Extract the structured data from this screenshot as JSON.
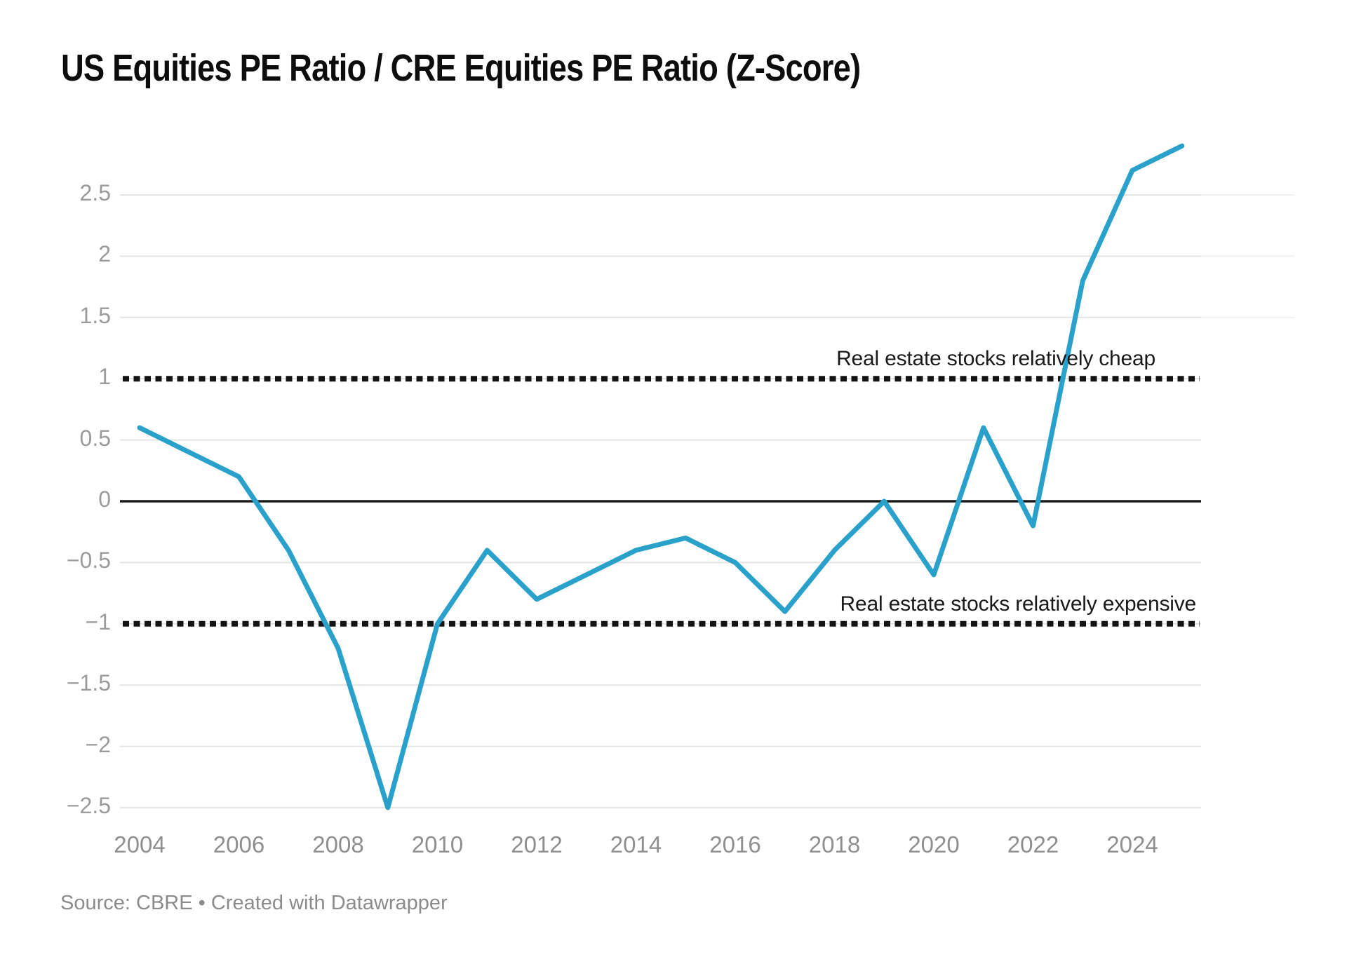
{
  "header": {
    "title": "US  Equities PE Ratio / CRE Equities PE Ratio (Z-Score)"
  },
  "annotations": {
    "cheap": "Real estate stocks relatively cheap",
    "expensive": "Real estate stocks relatively expensive"
  },
  "footer": {
    "text": "Source: CBRE • Created with Datawrapper"
  },
  "colors": {
    "series_line": "#2AA1CB",
    "zero_line": "#1c1c1c",
    "gridline": "#e4e4e4",
    "gridline_faint": "#f1f1f1",
    "threshold_dotted": "#141414",
    "axis_label": "#9b9b9b",
    "title_text": "#0d0d0d"
  },
  "chart_data": {
    "type": "line",
    "title": "US  Equities PE Ratio / CRE Equities PE Ratio (Z-Score)",
    "xlabel": "",
    "ylabel": "",
    "legend": "none",
    "grid": true,
    "x": [
      2004,
      2005,
      2006,
      2007,
      2008,
      2009,
      2010,
      2011,
      2012,
      2013,
      2014,
      2015,
      2016,
      2017,
      2018,
      2019,
      2020,
      2021,
      2022,
      2023,
      2024,
      2025
    ],
    "values": [
      0.6,
      0.4,
      0.2,
      -0.4,
      -1.2,
      -2.5,
      -1.0,
      -0.4,
      -0.8,
      -0.6,
      -0.4,
      -0.3,
      -0.5,
      -0.9,
      -0.4,
      0.0,
      -0.6,
      0.6,
      -0.2,
      1.8,
      2.7,
      2.9
    ],
    "xlim": [
      2003.6,
      2025.4
    ],
    "ylim": [
      -2.5,
      3.0
    ],
    "x_ticks": [
      2004,
      2006,
      2008,
      2010,
      2012,
      2014,
      2016,
      2018,
      2020,
      2022,
      2024
    ],
    "y_ticks": [
      {
        "value": 2.5,
        "label": "2.5"
      },
      {
        "value": 2,
        "label": "2"
      },
      {
        "value": 1.5,
        "label": "1.5"
      },
      {
        "value": 1,
        "label": "1"
      },
      {
        "value": 0.5,
        "label": "0.5"
      },
      {
        "value": 0,
        "label": "0"
      },
      {
        "value": -0.5,
        "label": "−0.5"
      },
      {
        "value": -1,
        "label": "−1"
      },
      {
        "value": -1.5,
        "label": "−1.5"
      },
      {
        "value": -2,
        "label": "−2"
      },
      {
        "value": -2.5,
        "label": "−2.5"
      }
    ],
    "zero_baseline": 0,
    "thresholds": [
      {
        "value": 1,
        "style": "dotted",
        "annotation": "Real estate stocks relatively cheap"
      },
      {
        "value": -1,
        "style": "dotted",
        "annotation": "Real estate stocks relatively expensive"
      }
    ]
  }
}
